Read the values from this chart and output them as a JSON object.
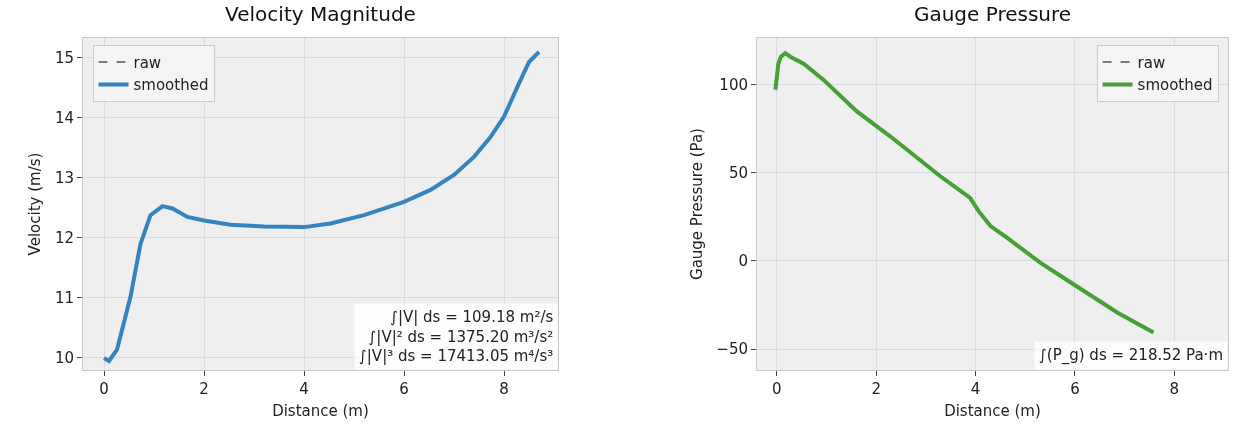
{
  "chart_data": [
    {
      "type": "line",
      "title": "Velocity Magnitude",
      "xlabel": "Distance (m)",
      "ylabel": "Velocity (m/s)",
      "x": [
        0,
        0.1,
        0.26,
        0.53,
        0.73,
        0.93,
        1.17,
        1.37,
        1.67,
        2.0,
        2.53,
        3.2,
        4.0,
        4.53,
        5.2,
        6.0,
        6.53,
        7.0,
        7.4,
        7.73,
        8.0,
        8.27,
        8.5,
        8.7
      ],
      "series": [
        {
          "name": "raw",
          "color": "#555555",
          "line_style": "dashed",
          "values": [
            null,
            null,
            null,
            null,
            null,
            null,
            null,
            null,
            null,
            null,
            null,
            null,
            null,
            null,
            null,
            null,
            null,
            null,
            null,
            null,
            null,
            null,
            null,
            null
          ]
        },
        {
          "name": "smoothed",
          "color": "#3584c0",
          "line_style": "solid",
          "values": [
            10.0,
            9.95,
            10.14,
            11.02,
            11.9,
            12.38,
            12.53,
            12.49,
            12.35,
            12.29,
            12.22,
            12.19,
            12.18,
            12.24,
            12.38,
            12.6,
            12.8,
            13.05,
            13.35,
            13.68,
            14.02,
            14.52,
            14.93,
            15.1
          ]
        }
      ],
      "xlim": [
        -0.42,
        9.08
      ],
      "xticks": [
        0,
        2,
        4,
        6,
        8
      ],
      "ylim": [
        9.8,
        15.33
      ],
      "yticks": [
        10,
        11,
        12,
        13,
        14,
        15
      ],
      "grid": true,
      "legend": "top left",
      "marker": "none",
      "annotations": [
        "∫|V| ds = 109.18 m²/s",
        "∫|V|² ds = 1375.20 m³/s²",
        "∫|V|³ ds = 17413.05 m⁴/s³"
      ]
    },
    {
      "type": "line",
      "title": "Gauge Pressure",
      "xlabel": "Distance (m)",
      "ylabel": "Gauge Pressure (Pa)",
      "x": [
        -0.03,
        0.03,
        0.08,
        0.17,
        0.27,
        0.54,
        0.94,
        1.61,
        2.28,
        3.29,
        3.89,
        4.06,
        4.3,
        4.63,
        5.3,
        5.97,
        6.85,
        7.58
      ],
      "series": [
        {
          "name": "raw",
          "color": "#555555",
          "line_style": "dashed",
          "values": [
            null,
            null,
            null,
            null,
            null,
            null,
            null,
            null,
            null,
            null,
            null,
            null,
            null,
            null,
            null,
            null,
            null,
            null
          ]
        },
        {
          "name": "smoothed",
          "color": "#46a035",
          "line_style": "solid",
          "values": [
            97.2,
            112,
            116,
            118,
            116,
            112,
            102.8,
            84.9,
            70.8,
            48.1,
            35.8,
            28.3,
            19.8,
            13.2,
            -0.9,
            -13.2,
            -29.2,
            -40.6
          ]
        }
      ],
      "xlim": [
        -0.4,
        9.08
      ],
      "xticks": [
        0,
        2,
        4,
        6,
        8
      ],
      "ylim": [
        -61.9,
        126.6
      ],
      "yticks": [
        {
          "value": -50,
          "label": "−50"
        },
        0,
        50,
        100
      ],
      "grid": true,
      "legend": "top right",
      "marker": "none",
      "annotations": [
        "∫(P_g) ds = 218.52 Pa·m"
      ]
    }
  ]
}
